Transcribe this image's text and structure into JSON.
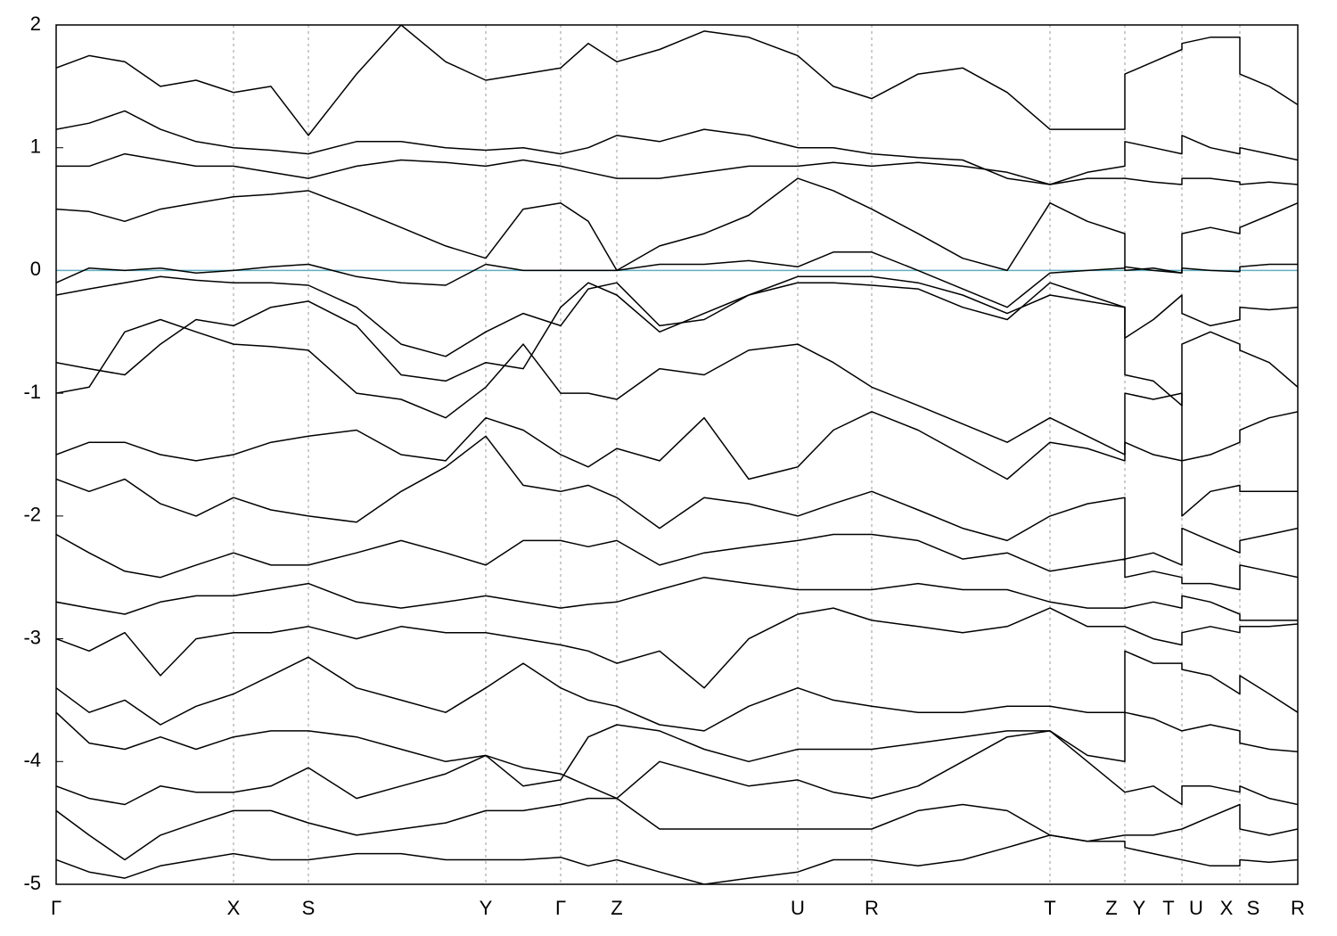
{
  "chart_data": {
    "type": "line",
    "x": [
      0,
      0.37,
      0.77,
      1.17,
      1.57,
      1.99,
      2.41,
      2.83,
      3.37,
      3.87,
      4.37,
      4.82,
      5.24,
      5.66,
      5.97,
      6.29,
      6.77,
      7.27,
      7.77,
      8.32,
      8.72,
      9.15,
      9.67,
      10.17,
      10.67,
      11.15,
      11.57,
      11.99,
      11.99,
      12.31,
      12.63,
      12.63,
      12.95,
      13.28,
      13.28,
      13.61,
      13.93
    ],
    "xlim": [
      0,
      13.93
    ],
    "xticks": [
      {
        "value": 0,
        "label": "Γ"
      },
      {
        "value": 1.99,
        "label": "X"
      },
      {
        "value": 2.83,
        "label": "S"
      },
      {
        "value": 4.82,
        "label": "Y"
      },
      {
        "value": 5.66,
        "label": "Γ"
      },
      {
        "value": 6.29,
        "label": "Z"
      },
      {
        "value": 8.32,
        "label": "U"
      },
      {
        "value": 9.15,
        "label": "R"
      },
      {
        "value": 11.15,
        "label": "T"
      },
      {
        "value": 11.84,
        "label": "Z"
      },
      {
        "value": 12.15,
        "label": "Y"
      },
      {
        "value": 12.48,
        "label": "T"
      },
      {
        "value": 12.79,
        "label": "U"
      },
      {
        "value": 13.13,
        "label": "X"
      },
      {
        "value": 13.43,
        "label": "S"
      },
      {
        "value": 13.93,
        "label": "R"
      }
    ],
    "vlines": [
      1.99,
      2.83,
      4.82,
      5.66,
      6.29,
      8.32,
      9.15,
      11.15,
      11.99,
      12.63,
      13.28
    ],
    "ylim": [
      -5,
      2
    ],
    "yticks": [
      -5,
      -4,
      -3,
      -2,
      -1,
      0,
      1,
      2
    ],
    "fermi_level": 0,
    "fermi_color": "#5fb0c0",
    "series": [
      {
        "color": "#000000",
        "values": [
          -0.1,
          0.02,
          0.0,
          0.02,
          -0.02,
          0.0,
          0.03,
          0.05,
          -0.05,
          -0.1,
          -0.12,
          0.05,
          0.0,
          0.0,
          0.0,
          0.0,
          0.05,
          0.05,
          0.08,
          0.03,
          0.15,
          0.15,
          0.0,
          -0.15,
          -0.3,
          -0.02,
          0.0,
          0.02,
          0.03,
          0.0,
          -0.02,
          0.02,
          0.0,
          -0.01,
          0.03,
          0.05,
          0.05
        ]
      },
      {
        "color": "#000000",
        "values": [
          -0.2,
          -0.15,
          -0.1,
          -0.05,
          -0.08,
          -0.1,
          -0.1,
          -0.12,
          -0.3,
          -0.6,
          -0.7,
          -0.5,
          -0.35,
          -0.45,
          -0.15,
          -0.1,
          -0.45,
          -0.4,
          -0.2,
          -0.1,
          -0.1,
          -0.12,
          -0.15,
          -0.3,
          -0.4,
          -0.1,
          -0.2,
          -0.3,
          -0.55,
          -0.4,
          -0.2,
          -0.35,
          -0.45,
          -0.4,
          -0.3,
          -0.32,
          -0.3
        ]
      },
      {
        "color": "#000000",
        "values": [
          0.5,
          0.48,
          0.4,
          0.5,
          0.55,
          0.6,
          0.62,
          0.65,
          0.5,
          0.35,
          0.2,
          0.1,
          0.5,
          0.55,
          0.4,
          0.0,
          0.2,
          0.3,
          0.45,
          0.75,
          0.65,
          0.5,
          0.3,
          0.1,
          0.0,
          0.55,
          0.4,
          0.3,
          0.0,
          0.02,
          -0.02,
          0.3,
          0.35,
          0.3,
          0.35,
          0.45,
          0.55
        ]
      },
      {
        "color": "#000000",
        "values": [
          -0.75,
          -0.8,
          -0.85,
          -0.6,
          -0.4,
          -0.45,
          -0.3,
          -0.25,
          -0.45,
          -0.85,
          -0.9,
          -0.75,
          -0.8,
          -0.3,
          -0.1,
          -0.2,
          -0.5,
          -0.35,
          -0.2,
          -0.05,
          -0.05,
          -0.05,
          -0.1,
          -0.2,
          -0.35,
          -0.2,
          -0.25,
          -0.3,
          -0.85,
          -0.9,
          -1.1,
          -0.6,
          -0.5,
          -0.6,
          -0.65,
          -0.75,
          -0.95
        ]
      },
      {
        "color": "#000000",
        "values": [
          -1.0,
          -0.95,
          -0.5,
          -0.4,
          -0.5,
          -0.6,
          -0.62,
          -0.65,
          -1.0,
          -1.05,
          -1.2,
          -0.95,
          -0.6,
          -1.0,
          -1.0,
          -1.05,
          -0.8,
          -0.85,
          -0.65,
          -0.6,
          -0.75,
          -0.95,
          -1.1,
          -1.25,
          -1.4,
          -1.2,
          -1.35,
          -1.5,
          -1.0,
          -1.05,
          -1.0,
          -1.55,
          -1.5,
          -1.4,
          -1.3,
          -1.2,
          -1.15
        ]
      },
      {
        "color": "#000000",
        "values": [
          -1.5,
          -1.4,
          -1.4,
          -1.5,
          -1.55,
          -1.5,
          -1.4,
          -1.35,
          -1.3,
          -1.5,
          -1.55,
          -1.2,
          -1.3,
          -1.5,
          -1.6,
          -1.45,
          -1.55,
          -1.2,
          -1.7,
          -1.6,
          -1.3,
          -1.15,
          -1.3,
          -1.5,
          -1.7,
          -1.4,
          -1.45,
          -1.55,
          -1.4,
          -1.5,
          -1.55,
          -2.0,
          -1.8,
          -1.75,
          -1.8,
          -1.8,
          -1.8
        ]
      },
      {
        "color": "#000000",
        "values": [
          -1.7,
          -1.8,
          -1.7,
          -1.9,
          -2.0,
          -1.85,
          -1.95,
          -2.0,
          -2.05,
          -1.8,
          -1.6,
          -1.35,
          -1.75,
          -1.8,
          -1.75,
          -1.85,
          -2.1,
          -1.85,
          -1.9,
          -2.0,
          -1.9,
          -1.8,
          -1.95,
          -2.1,
          -2.2,
          -2.0,
          -1.9,
          -1.85,
          -2.35,
          -2.3,
          -2.4,
          -2.1,
          -2.2,
          -2.3,
          -2.2,
          -2.15,
          -2.1
        ]
      },
      {
        "color": "#000000",
        "values": [
          -2.15,
          -2.3,
          -2.45,
          -2.5,
          -2.4,
          -2.3,
          -2.4,
          -2.4,
          -2.3,
          -2.2,
          -2.3,
          -2.4,
          -2.2,
          -2.2,
          -2.25,
          -2.2,
          -2.4,
          -2.3,
          -2.25,
          -2.2,
          -2.15,
          -2.15,
          -2.2,
          -2.35,
          -2.3,
          -2.45,
          -2.4,
          -2.35,
          -2.5,
          -2.45,
          -2.5,
          -2.55,
          -2.55,
          -2.6,
          -2.4,
          -2.45,
          -2.5
        ]
      },
      {
        "color": "#000000",
        "values": [
          -2.7,
          -2.75,
          -2.8,
          -2.7,
          -2.65,
          -2.65,
          -2.6,
          -2.55,
          -2.7,
          -2.75,
          -2.7,
          -2.65,
          -2.7,
          -2.75,
          -2.72,
          -2.7,
          -2.6,
          -2.5,
          -2.55,
          -2.6,
          -2.6,
          -2.6,
          -2.55,
          -2.6,
          -2.6,
          -2.7,
          -2.75,
          -2.75,
          -2.75,
          -2.7,
          -2.75,
          -2.65,
          -2.7,
          -2.8,
          -2.85,
          -2.85,
          -2.85
        ]
      },
      {
        "color": "#000000",
        "values": [
          -3.0,
          -3.1,
          -2.95,
          -3.3,
          -3.0,
          -2.95,
          -2.95,
          -2.9,
          -3.0,
          -2.9,
          -2.95,
          -2.95,
          -3.0,
          -3.05,
          -3.1,
          -3.2,
          -3.1,
          -3.4,
          -3.0,
          -2.8,
          -2.75,
          -2.85,
          -2.9,
          -2.95,
          -2.9,
          -2.75,
          -2.9,
          -2.9,
          -2.9,
          -3.0,
          -3.05,
          -2.95,
          -2.9,
          -2.95,
          -2.9,
          -2.9,
          -2.88
        ]
      },
      {
        "color": "#000000",
        "values": [
          -3.4,
          -3.6,
          -3.5,
          -3.7,
          -3.55,
          -3.45,
          -3.3,
          -3.15,
          -3.4,
          -3.5,
          -3.6,
          -3.4,
          -3.2,
          -3.4,
          -3.5,
          -3.55,
          -3.7,
          -3.75,
          -3.55,
          -3.4,
          -3.5,
          -3.55,
          -3.6,
          -3.6,
          -3.55,
          -3.55,
          -3.6,
          -3.6,
          -3.1,
          -3.2,
          -3.2,
          -3.25,
          -3.3,
          -3.45,
          -3.3,
          -3.45,
          -3.6
        ]
      },
      {
        "color": "#000000",
        "values": [
          -3.6,
          -3.85,
          -3.9,
          -3.8,
          -3.9,
          -3.8,
          -3.75,
          -3.75,
          -3.8,
          -3.9,
          -4.0,
          -3.95,
          -4.2,
          -4.15,
          -3.8,
          -3.7,
          -3.75,
          -3.9,
          -4.0,
          -3.9,
          -3.9,
          -3.9,
          -3.85,
          -3.8,
          -3.75,
          -3.75,
          -3.95,
          -4.0,
          -3.6,
          -3.65,
          -3.75,
          -3.75,
          -3.7,
          -3.75,
          -3.85,
          -3.9,
          -3.92
        ]
      },
      {
        "color": "#000000",
        "values": [
          -4.2,
          -4.3,
          -4.35,
          -4.2,
          -4.25,
          -4.25,
          -4.2,
          -4.05,
          -4.3,
          -4.2,
          -4.1,
          -3.95,
          -4.05,
          -4.1,
          -4.2,
          -4.3,
          -4.0,
          -4.1,
          -4.2,
          -4.15,
          -4.25,
          -4.3,
          -4.2,
          -4.0,
          -3.8,
          -3.75,
          -4.0,
          -4.25,
          -4.25,
          -4.2,
          -4.35,
          -4.2,
          -4.2,
          -4.25,
          -4.2,
          -4.3,
          -4.35
        ]
      },
      {
        "color": "#000000",
        "values": [
          -4.4,
          -4.6,
          -4.8,
          -4.6,
          -4.5,
          -4.4,
          -4.4,
          -4.5,
          -4.6,
          -4.55,
          -4.5,
          -4.4,
          -4.4,
          -4.35,
          -4.3,
          -4.3,
          -4.55,
          -4.55,
          -4.55,
          -4.55,
          -4.55,
          -4.55,
          -4.4,
          -4.35,
          -4.4,
          -4.6,
          -4.65,
          -4.6,
          -4.6,
          -4.6,
          -4.55,
          -4.55,
          -4.45,
          -4.35,
          -4.55,
          -4.6,
          -4.55
        ]
      },
      {
        "color": "#000000",
        "values": [
          0.85,
          0.85,
          0.95,
          0.9,
          0.85,
          0.85,
          0.8,
          0.75,
          0.85,
          0.9,
          0.88,
          0.85,
          0.9,
          0.85,
          0.8,
          0.75,
          0.75,
          0.8,
          0.85,
          0.85,
          0.88,
          0.85,
          0.88,
          0.85,
          0.8,
          0.7,
          0.75,
          0.75,
          0.75,
          0.72,
          0.7,
          0.75,
          0.75,
          0.72,
          0.7,
          0.72,
          0.7
        ]
      },
      {
        "color": "#000000",
        "values": [
          1.15,
          1.2,
          1.3,
          1.15,
          1.05,
          1.0,
          0.98,
          0.95,
          1.05,
          1.05,
          1.0,
          0.98,
          1.0,
          0.95,
          1.0,
          1.1,
          1.05,
          1.15,
          1.1,
          1.0,
          1.0,
          0.95,
          0.92,
          0.9,
          0.75,
          0.7,
          0.8,
          0.85,
          1.05,
          1.0,
          0.95,
          1.1,
          1.0,
          0.95,
          1.0,
          0.95,
          0.9
        ]
      },
      {
        "color": "#000000",
        "values": [
          1.65,
          1.75,
          1.7,
          1.5,
          1.55,
          1.45,
          1.5,
          1.1,
          1.6,
          2.0,
          1.7,
          1.55,
          1.6,
          1.65,
          1.85,
          1.7,
          1.8,
          1.95,
          1.9,
          1.75,
          1.5,
          1.4,
          1.6,
          1.65,
          1.45,
          1.15,
          1.15,
          1.15,
          1.6,
          1.7,
          1.8,
          1.85,
          1.9,
          1.9,
          1.6,
          1.5,
          1.35
        ]
      },
      {
        "color": "#000000",
        "values": [
          -4.8,
          -4.9,
          -4.95,
          -4.85,
          -4.8,
          -4.75,
          -4.8,
          -4.8,
          -4.75,
          -4.75,
          -4.8,
          -4.8,
          -4.8,
          -4.78,
          -4.85,
          -4.8,
          -4.9,
          -5.0,
          -4.95,
          -4.9,
          -4.8,
          -4.8,
          -4.85,
          -4.8,
          -4.7,
          -4.6,
          -4.65,
          -4.65,
          -4.7,
          -4.75,
          -4.8,
          -4.8,
          -4.85,
          -4.85,
          -4.8,
          -4.82,
          -4.8
        ]
      }
    ]
  }
}
